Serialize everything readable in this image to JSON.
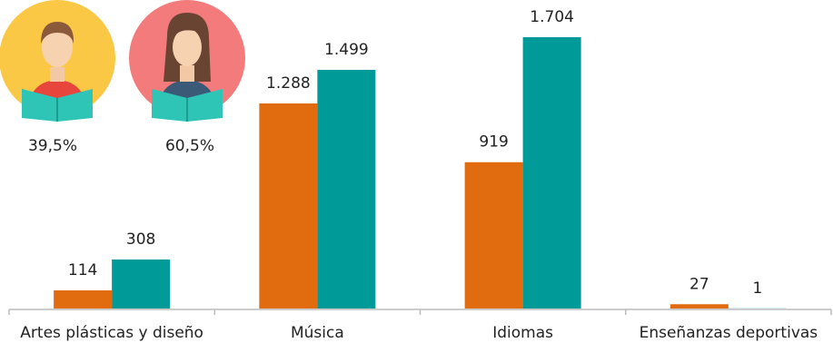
{
  "chart_data": {
    "type": "bar",
    "categories": [
      "Artes plásticas y diseño",
      "Música",
      "Idiomas",
      "Enseñanzas deportivas"
    ],
    "series": [
      {
        "name": "39,5%",
        "color": "#e06c0f",
        "values": [
          114,
          1288,
          919,
          27
        ],
        "value_labels": [
          "114",
          "1.288",
          "919",
          "27"
        ]
      },
      {
        "name": "60,5%",
        "color": "#009b98",
        "values": [
          308,
          1499,
          1704,
          1
        ],
        "value_labels": [
          "308",
          "1.499",
          "1.704",
          "1"
        ]
      }
    ]
  }
}
